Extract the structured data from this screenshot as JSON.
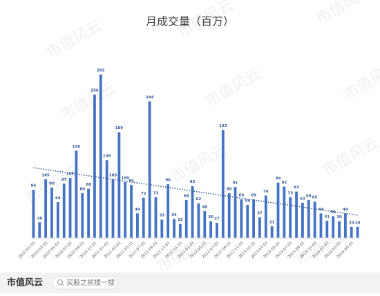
{
  "chart_data": {
    "type": "bar",
    "title": "月成交量（百万）",
    "categories": [
      "2010-01-01",
      null,
      "2010-03-01",
      null,
      "2010-05-01",
      null,
      "2010-07-01",
      null,
      "2010-09-01",
      null,
      "2010-11-01",
      null,
      "2011-01-01",
      null,
      "2011-03-01",
      null,
      "2011-05-01",
      null,
      "2011-07-01",
      null,
      "2011-09-01",
      null,
      "2011-11-01",
      null,
      "2012-01-01",
      null,
      "2012-03-01",
      null,
      "2012-05-01",
      null,
      "2012-07-01",
      null,
      "2012-09-01",
      null,
      "2012-11-01",
      null,
      "2013-01-01",
      null,
      "2013-03-01",
      null,
      "2013-05-01",
      null,
      "2013-07-01",
      null,
      "2013-09-01",
      null,
      "2013-11-01",
      null,
      "2014-01-01",
      null,
      "2014-03-01",
      null,
      "2014-05-01",
      null
    ],
    "values": [
      86,
      28,
      105,
      90,
      64,
      97,
      107,
      156,
      80,
      88,
      256,
      292,
      139,
      105,
      189,
      100,
      95,
      44,
      72,
      244,
      73,
      33,
      96,
      34,
      25,
      68,
      93,
      62,
      48,
      30,
      27,
      193,
      80,
      91,
      69,
      59,
      69,
      37,
      76,
      21,
      99,
      92,
      73,
      83,
      63,
      68,
      65,
      44,
      31,
      39,
      30,
      44,
      20,
      20
    ],
    "color": "#4472c4",
    "trendline": true
  },
  "watermark": "市值风云",
  "footer": {
    "brand": "市值风云",
    "search": "买股之前搜一搜"
  }
}
